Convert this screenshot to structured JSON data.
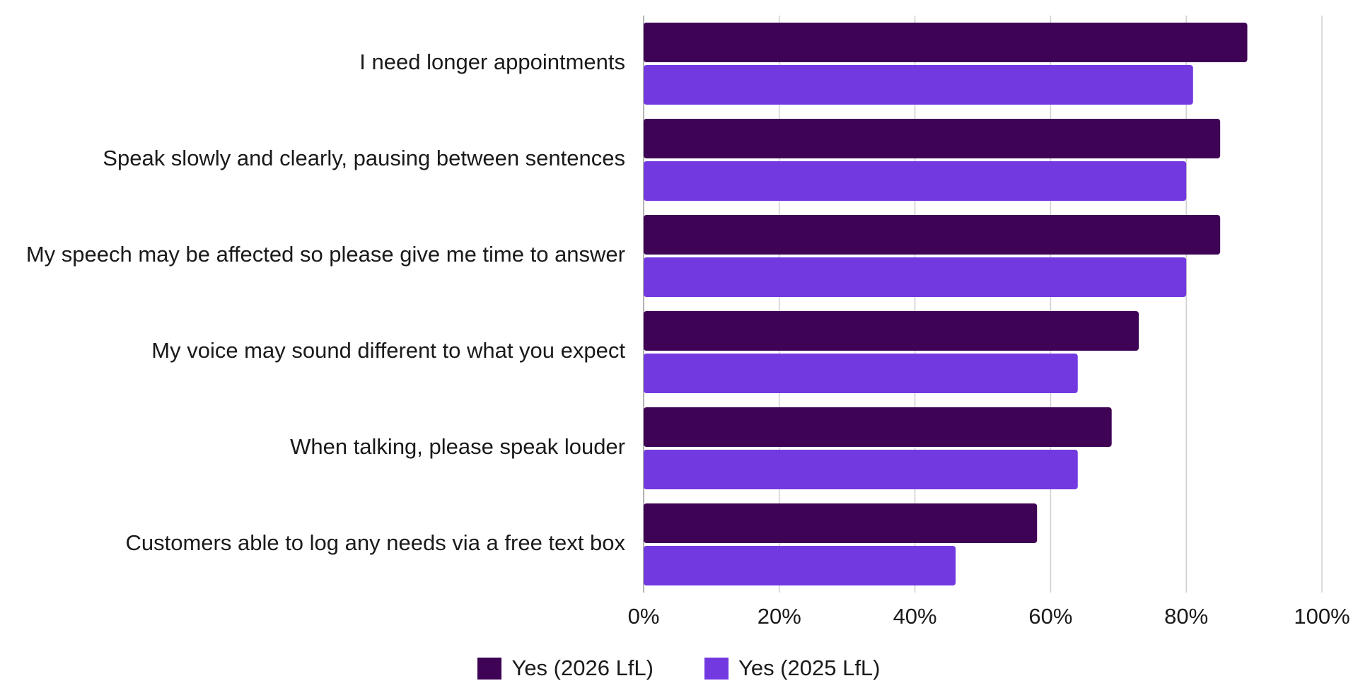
{
  "chart_data": {
    "type": "bar",
    "orientation": "horizontal",
    "categories": [
      "I need longer appointments",
      "Speak slowly and clearly, pausing between sentences",
      "My speech may be affected so please give me time to answer",
      "My voice may sound different to what you expect",
      "When talking, please speak louder",
      "Customers able to log any needs via a free text box"
    ],
    "series": [
      {
        "name": "Yes (2026 LfL)",
        "color": "#3f0356",
        "values": [
          89,
          85,
          85,
          73,
          69,
          58
        ]
      },
      {
        "name": "Yes (2025 LfL)",
        "color": "#7239e0",
        "values": [
          81,
          80,
          80,
          64,
          64,
          46
        ]
      }
    ],
    "xlim": [
      0,
      100
    ],
    "x_ticks": [
      "0%",
      "20%",
      "40%",
      "60%",
      "80%",
      "100%"
    ],
    "x_tick_values": [
      0,
      20,
      40,
      60,
      80,
      100
    ],
    "grid": "vertical",
    "legend_position": "bottom-center"
  }
}
